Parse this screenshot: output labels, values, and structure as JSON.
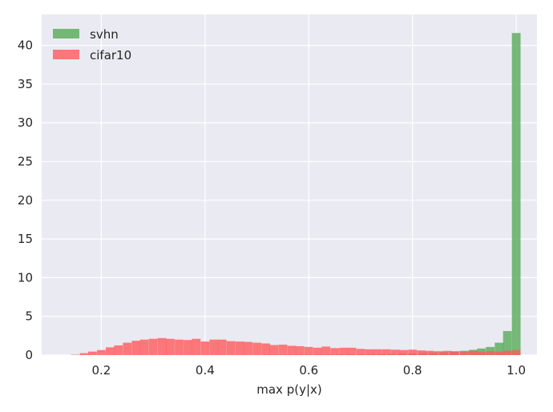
{
  "chart_data": {
    "type": "bar",
    "histogram": true,
    "xlabel": "max p(y|x)",
    "ylabel": "",
    "title": "",
    "xlim": [
      0.085,
      1.04
    ],
    "ylim": [
      0,
      44
    ],
    "xticks": [
      0.2,
      0.4,
      0.6,
      0.8,
      1.0
    ],
    "xtick_labels": [
      "0.2",
      "0.4",
      "0.6",
      "0.8",
      "1.0"
    ],
    "yticks": [
      0,
      5,
      10,
      15,
      20,
      25,
      30,
      35,
      40
    ],
    "ytick_labels": [
      "0",
      "5",
      "10",
      "15",
      "20",
      "25",
      "30",
      "35",
      "40"
    ],
    "grid": true,
    "legend_position": "top-left",
    "bin_width": 0.0167,
    "series": [
      {
        "name": "svhn",
        "color": "#4ca64c",
        "bins": [
          [
            0.52,
            0.04
          ],
          [
            0.54,
            0.04
          ],
          [
            0.56,
            0.05
          ],
          [
            0.58,
            0.05
          ],
          [
            0.6,
            0.05
          ],
          [
            0.62,
            0.06
          ],
          [
            0.64,
            0.07
          ],
          [
            0.66,
            0.08
          ],
          [
            0.68,
            0.09
          ],
          [
            0.7,
            0.11
          ],
          [
            0.72,
            0.12
          ],
          [
            0.74,
            0.14
          ],
          [
            0.76,
            0.16
          ],
          [
            0.78,
            0.19
          ],
          [
            0.8,
            0.22
          ],
          [
            0.82,
            0.27
          ],
          [
            0.84,
            0.32
          ],
          [
            0.86,
            0.38
          ],
          [
            0.88,
            0.45
          ],
          [
            0.9,
            0.55
          ],
          [
            0.917,
            0.68
          ],
          [
            0.933,
            0.85
          ],
          [
            0.95,
            1.05
          ],
          [
            0.967,
            1.6
          ],
          [
            0.983,
            3.1
          ],
          [
            1.0,
            41.6
          ]
        ]
      },
      {
        "name": "cifar10",
        "color": "#ff5a5a",
        "bins": [
          [
            0.15,
            0.05
          ],
          [
            0.167,
            0.25
          ],
          [
            0.183,
            0.45
          ],
          [
            0.2,
            0.65
          ],
          [
            0.217,
            1.0
          ],
          [
            0.233,
            1.25
          ],
          [
            0.25,
            1.6
          ],
          [
            0.267,
            1.85
          ],
          [
            0.283,
            2.0
          ],
          [
            0.3,
            2.1
          ],
          [
            0.317,
            2.2
          ],
          [
            0.333,
            2.1
          ],
          [
            0.35,
            2.0
          ],
          [
            0.367,
            1.95
          ],
          [
            0.383,
            2.1
          ],
          [
            0.4,
            1.75
          ],
          [
            0.417,
            2.0
          ],
          [
            0.433,
            2.0
          ],
          [
            0.45,
            1.8
          ],
          [
            0.467,
            1.75
          ],
          [
            0.483,
            1.7
          ],
          [
            0.5,
            1.6
          ],
          [
            0.517,
            1.5
          ],
          [
            0.533,
            1.3
          ],
          [
            0.55,
            1.35
          ],
          [
            0.567,
            1.2
          ],
          [
            0.583,
            1.15
          ],
          [
            0.6,
            1.05
          ],
          [
            0.617,
            0.95
          ],
          [
            0.633,
            1.1
          ],
          [
            0.65,
            0.9
          ],
          [
            0.667,
            0.95
          ],
          [
            0.683,
            0.95
          ],
          [
            0.7,
            0.8
          ],
          [
            0.717,
            0.75
          ],
          [
            0.733,
            0.75
          ],
          [
            0.75,
            0.75
          ],
          [
            0.767,
            0.7
          ],
          [
            0.783,
            0.65
          ],
          [
            0.8,
            0.7
          ],
          [
            0.817,
            0.6
          ],
          [
            0.833,
            0.55
          ],
          [
            0.85,
            0.5
          ],
          [
            0.867,
            0.55
          ],
          [
            0.883,
            0.5
          ],
          [
            0.9,
            0.45
          ],
          [
            0.917,
            0.55
          ],
          [
            0.933,
            0.45
          ],
          [
            0.95,
            0.5
          ],
          [
            0.967,
            0.45
          ],
          [
            0.983,
            0.55
          ],
          [
            1.0,
            0.65
          ]
        ]
      }
    ]
  }
}
